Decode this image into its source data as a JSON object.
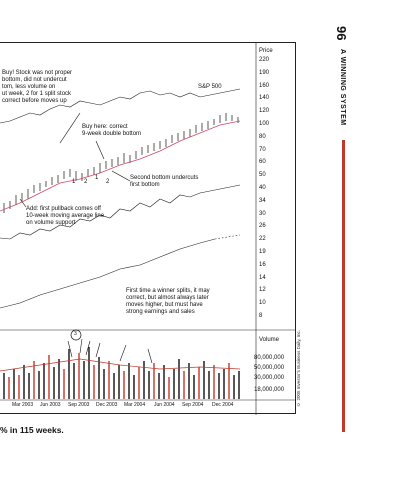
{
  "page": {
    "number": "96",
    "running_title": "A WINNING SYSTEM",
    "caption": "% in 115 weeks.",
    "copyright": "© 2005 Investor's Business Daily, Inc."
  },
  "chart": {
    "price_header": "Price",
    "volume_header": "Volume",
    "sp_label": "S&P 500",
    "price_ticks": [
      "220",
      "190",
      "160",
      "140",
      "120",
      "100",
      "80",
      "70",
      "60",
      "50",
      "40",
      "34",
      "30",
      "26",
      "22",
      "19",
      "16",
      "14",
      "12",
      "10",
      "8"
    ],
    "volume_ticks": [
      "80,000,000",
      "50,000,000",
      "30,000,000",
      "18,000,000"
    ],
    "date_labels": [
      "Mar 2003",
      "Jun 2003",
      "Sep 2003",
      "Dec 2003",
      "Mar 2004",
      "Jun 2004",
      "Sep 2004",
      "Dec 2004"
    ],
    "base_labels": [
      "1",
      "2",
      "1",
      "2"
    ],
    "circle_label": "3"
  },
  "annotations": {
    "buy_proper": [
      "Buy! Stock was not proper",
      "bottom, did not undercut",
      "tom, less volume on",
      "ut week, 2 for 1 split stock",
      "correct before moves up"
    ],
    "buy_here": [
      "Buy here: correct",
      "9-week double bottom"
    ],
    "undercuts": [
      "Second bottom undercuts",
      "first bottom"
    ],
    "pullback": [
      "Add: first pullback comes off",
      "10-week moving average line",
      "on volume support"
    ],
    "first_split": [
      "First time a winner splits, it may",
      "correct, but almost always later",
      "moves higher, but must have",
      "strong earnings and sales"
    ]
  },
  "colors": {
    "accent_red": "#c0392b",
    "moving_average": "#d04a6a",
    "volume_red": "#c0392b",
    "ink": "#111111"
  }
}
